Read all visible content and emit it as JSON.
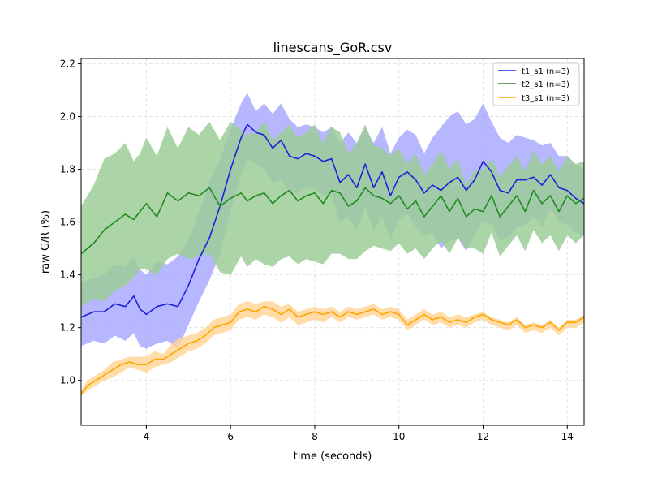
{
  "chart_data": {
    "type": "line",
    "title": "linescans_GoR.csv",
    "xlabel": "time (seconds)",
    "ylabel": "raw G/R (%)",
    "xlim": [
      2.45,
      14.4
    ],
    "ylim": [
      0.83,
      2.22
    ],
    "xticks": [
      4,
      6,
      8,
      10,
      12,
      14
    ],
    "yticks": [
      1.0,
      1.2,
      1.4,
      1.6,
      1.8,
      2.0,
      2.2
    ],
    "grid": true,
    "legend_position": "top-right",
    "series": [
      {
        "name": "t1_s1 (n=3)",
        "color": "#1f1fdc",
        "band_color": "#aaaaff",
        "x": [
          2.45,
          2.75,
          3.0,
          3.25,
          3.5,
          3.7,
          3.85,
          4.0,
          4.25,
          4.5,
          4.75,
          5.0,
          5.25,
          5.5,
          5.75,
          6.0,
          6.25,
          6.4,
          6.6,
          6.8,
          7.0,
          7.2,
          7.4,
          7.6,
          7.8,
          8.0,
          8.2,
          8.4,
          8.6,
          8.8,
          9.0,
          9.2,
          9.4,
          9.6,
          9.8,
          10.0,
          10.2,
          10.4,
          10.6,
          10.8,
          11.0,
          11.2,
          11.4,
          11.6,
          11.8,
          12.0,
          12.2,
          12.4,
          12.6,
          12.8,
          13.0,
          13.2,
          13.4,
          13.6,
          13.8,
          14.0,
          14.2,
          14.4
        ],
        "y": [
          1.24,
          1.26,
          1.26,
          1.29,
          1.28,
          1.32,
          1.27,
          1.25,
          1.28,
          1.29,
          1.28,
          1.36,
          1.46,
          1.54,
          1.66,
          1.8,
          1.92,
          1.97,
          1.94,
          1.93,
          1.88,
          1.91,
          1.85,
          1.84,
          1.86,
          1.85,
          1.83,
          1.84,
          1.75,
          1.78,
          1.73,
          1.82,
          1.73,
          1.79,
          1.7,
          1.77,
          1.79,
          1.76,
          1.71,
          1.74,
          1.72,
          1.75,
          1.77,
          1.72,
          1.76,
          1.83,
          1.79,
          1.72,
          1.71,
          1.76,
          1.76,
          1.77,
          1.74,
          1.78,
          1.73,
          1.72,
          1.69,
          1.67
        ],
        "upper": [
          1.37,
          1.39,
          1.4,
          1.44,
          1.43,
          1.47,
          1.42,
          1.4,
          1.45,
          1.44,
          1.47,
          1.53,
          1.64,
          1.75,
          1.84,
          1.95,
          2.05,
          2.09,
          2.02,
          2.05,
          2.01,
          2.05,
          1.99,
          1.96,
          1.97,
          1.96,
          1.94,
          1.96,
          1.9,
          1.94,
          1.9,
          1.96,
          1.9,
          1.96,
          1.86,
          1.92,
          1.95,
          1.93,
          1.86,
          1.92,
          1.96,
          2.0,
          2.02,
          1.97,
          1.99,
          2.05,
          1.98,
          1.92,
          1.9,
          1.93,
          1.92,
          1.91,
          1.89,
          1.9,
          1.85,
          1.85,
          1.82,
          1.8
        ],
        "lower": [
          1.13,
          1.15,
          1.14,
          1.17,
          1.15,
          1.18,
          1.13,
          1.12,
          1.14,
          1.15,
          1.12,
          1.21,
          1.3,
          1.38,
          1.48,
          1.64,
          1.78,
          1.84,
          1.82,
          1.8,
          1.75,
          1.76,
          1.71,
          1.71,
          1.73,
          1.73,
          1.7,
          1.7,
          1.6,
          1.62,
          1.57,
          1.66,
          1.57,
          1.62,
          1.53,
          1.61,
          1.63,
          1.58,
          1.55,
          1.56,
          1.5,
          1.53,
          1.54,
          1.49,
          1.55,
          1.6,
          1.59,
          1.53,
          1.54,
          1.58,
          1.59,
          1.62,
          1.58,
          1.65,
          1.6,
          1.59,
          1.56,
          1.55
        ]
      },
      {
        "name": "t2_s1 (n=3)",
        "color": "#228b22",
        "band_color": "#9ccc98",
        "x": [
          2.45,
          2.75,
          3.0,
          3.25,
          3.5,
          3.7,
          3.85,
          4.0,
          4.25,
          4.5,
          4.75,
          5.0,
          5.25,
          5.5,
          5.75,
          6.0,
          6.25,
          6.4,
          6.6,
          6.8,
          7.0,
          7.2,
          7.4,
          7.6,
          7.8,
          8.0,
          8.2,
          8.4,
          8.6,
          8.8,
          9.0,
          9.2,
          9.4,
          9.6,
          9.8,
          10.0,
          10.2,
          10.4,
          10.6,
          10.8,
          11.0,
          11.2,
          11.4,
          11.6,
          11.8,
          12.0,
          12.2,
          12.4,
          12.6,
          12.8,
          13.0,
          13.2,
          13.4,
          13.6,
          13.8,
          14.0,
          14.2,
          14.4
        ],
        "y": [
          1.48,
          1.52,
          1.57,
          1.6,
          1.63,
          1.61,
          1.64,
          1.67,
          1.62,
          1.71,
          1.68,
          1.71,
          1.7,
          1.73,
          1.66,
          1.69,
          1.71,
          1.68,
          1.7,
          1.71,
          1.67,
          1.7,
          1.72,
          1.68,
          1.7,
          1.71,
          1.67,
          1.72,
          1.71,
          1.66,
          1.68,
          1.73,
          1.7,
          1.69,
          1.67,
          1.7,
          1.65,
          1.68,
          1.62,
          1.66,
          1.7,
          1.64,
          1.69,
          1.62,
          1.65,
          1.64,
          1.7,
          1.62,
          1.66,
          1.7,
          1.64,
          1.72,
          1.67,
          1.7,
          1.64,
          1.7,
          1.67,
          1.69
        ],
        "upper": [
          1.66,
          1.74,
          1.84,
          1.86,
          1.9,
          1.83,
          1.86,
          1.92,
          1.85,
          1.96,
          1.88,
          1.96,
          1.93,
          1.98,
          1.91,
          1.98,
          1.95,
          1.93,
          1.94,
          1.98,
          1.91,
          1.94,
          1.97,
          1.92,
          1.94,
          1.97,
          1.9,
          1.96,
          1.94,
          1.86,
          1.9,
          1.97,
          1.89,
          1.88,
          1.85,
          1.88,
          1.82,
          1.86,
          1.78,
          1.82,
          1.87,
          1.8,
          1.84,
          1.74,
          1.8,
          1.8,
          1.84,
          1.77,
          1.81,
          1.85,
          1.79,
          1.87,
          1.82,
          1.85,
          1.79,
          1.85,
          1.82,
          1.83
        ],
        "lower": [
          1.28,
          1.31,
          1.3,
          1.34,
          1.36,
          1.39,
          1.42,
          1.42,
          1.4,
          1.46,
          1.48,
          1.46,
          1.47,
          1.48,
          1.41,
          1.4,
          1.47,
          1.43,
          1.46,
          1.44,
          1.43,
          1.46,
          1.47,
          1.44,
          1.46,
          1.45,
          1.44,
          1.48,
          1.48,
          1.46,
          1.46,
          1.49,
          1.51,
          1.5,
          1.49,
          1.52,
          1.48,
          1.5,
          1.46,
          1.5,
          1.53,
          1.48,
          1.54,
          1.5,
          1.5,
          1.48,
          1.56,
          1.47,
          1.51,
          1.55,
          1.49,
          1.57,
          1.52,
          1.55,
          1.49,
          1.55,
          1.52,
          1.55
        ]
      },
      {
        "name": "t3_s1 (n=3)",
        "color": "#ffa500",
        "band_color": "#ffd699",
        "x": [
          2.45,
          2.6,
          2.8,
          3.0,
          3.2,
          3.4,
          3.6,
          3.8,
          4.0,
          4.2,
          4.4,
          4.6,
          4.8,
          5.0,
          5.2,
          5.4,
          5.6,
          5.8,
          6.0,
          6.2,
          6.4,
          6.6,
          6.8,
          7.0,
          7.2,
          7.4,
          7.6,
          7.8,
          8.0,
          8.2,
          8.4,
          8.6,
          8.8,
          9.0,
          9.2,
          9.4,
          9.6,
          9.8,
          10.0,
          10.2,
          10.4,
          10.6,
          10.8,
          11.0,
          11.2,
          11.4,
          11.6,
          11.8,
          12.0,
          12.2,
          12.4,
          12.6,
          12.8,
          13.0,
          13.2,
          13.4,
          13.6,
          13.8,
          14.0,
          14.2,
          14.4
        ],
        "y": [
          0.95,
          0.98,
          1.0,
          1.02,
          1.04,
          1.06,
          1.07,
          1.06,
          1.06,
          1.08,
          1.08,
          1.1,
          1.12,
          1.14,
          1.15,
          1.17,
          1.2,
          1.21,
          1.22,
          1.26,
          1.27,
          1.26,
          1.28,
          1.27,
          1.25,
          1.27,
          1.24,
          1.25,
          1.26,
          1.25,
          1.26,
          1.24,
          1.26,
          1.25,
          1.26,
          1.27,
          1.25,
          1.26,
          1.25,
          1.21,
          1.23,
          1.25,
          1.23,
          1.24,
          1.22,
          1.23,
          1.22,
          1.24,
          1.25,
          1.23,
          1.22,
          1.21,
          1.23,
          1.2,
          1.21,
          1.2,
          1.22,
          1.19,
          1.22,
          1.22,
          1.24
        ],
        "upper": [
          0.96,
          1.0,
          1.02,
          1.04,
          1.07,
          1.08,
          1.09,
          1.09,
          1.09,
          1.11,
          1.1,
          1.14,
          1.16,
          1.17,
          1.18,
          1.2,
          1.23,
          1.24,
          1.25,
          1.29,
          1.3,
          1.29,
          1.3,
          1.3,
          1.28,
          1.29,
          1.26,
          1.27,
          1.28,
          1.27,
          1.28,
          1.26,
          1.28,
          1.27,
          1.28,
          1.29,
          1.27,
          1.28,
          1.27,
          1.23,
          1.25,
          1.27,
          1.25,
          1.26,
          1.24,
          1.25,
          1.24,
          1.25,
          1.26,
          1.24,
          1.23,
          1.22,
          1.24,
          1.21,
          1.22,
          1.21,
          1.23,
          1.2,
          1.23,
          1.23,
          1.25
        ],
        "lower": [
          0.94,
          0.96,
          0.98,
          1.0,
          1.01,
          1.03,
          1.05,
          1.04,
          1.03,
          1.05,
          1.06,
          1.07,
          1.09,
          1.11,
          1.12,
          1.14,
          1.17,
          1.18,
          1.19,
          1.23,
          1.24,
          1.23,
          1.25,
          1.24,
          1.22,
          1.24,
          1.21,
          1.22,
          1.23,
          1.22,
          1.24,
          1.22,
          1.24,
          1.23,
          1.24,
          1.25,
          1.23,
          1.24,
          1.23,
          1.19,
          1.21,
          1.23,
          1.21,
          1.22,
          1.2,
          1.21,
          1.2,
          1.22,
          1.23,
          1.21,
          1.2,
          1.19,
          1.21,
          1.18,
          1.19,
          1.18,
          1.2,
          1.17,
          1.2,
          1.2,
          1.22
        ]
      }
    ]
  }
}
